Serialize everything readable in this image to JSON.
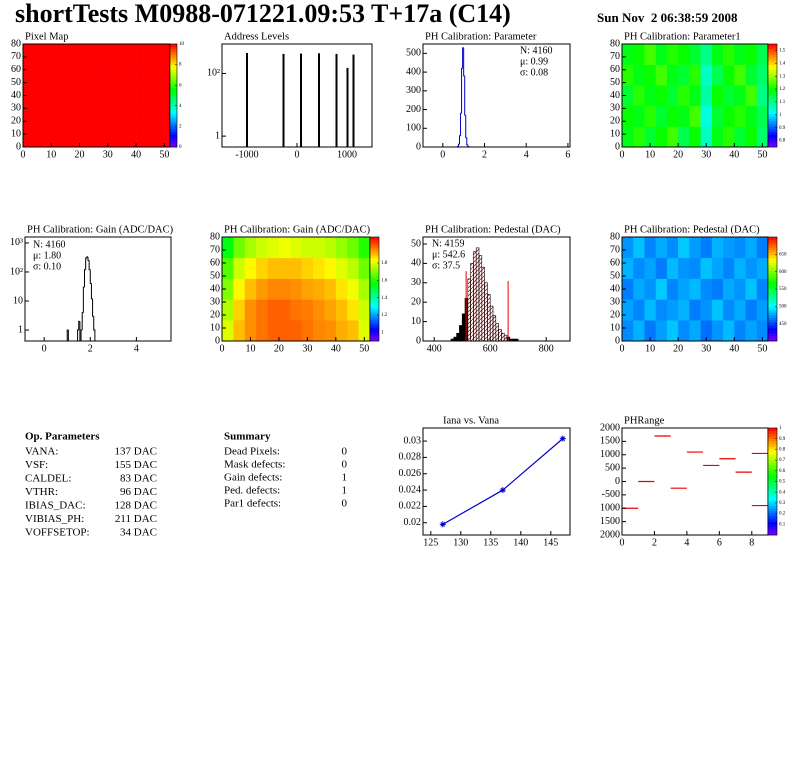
{
  "header": {
    "title": "shortTests M0988-071221.09:53 T+17a (C14)",
    "date": "Sun Nov  2 06:38:59 2008"
  },
  "chart_data": [
    {
      "type": "heatmap",
      "title": "Pixel Map",
      "xlim": [
        0,
        52
      ],
      "ylim": [
        0,
        80
      ],
      "xticks": [
        0,
        10,
        20,
        30,
        40,
        50
      ],
      "yticks": [
        0,
        10,
        20,
        30,
        40,
        50,
        60,
        70,
        80
      ],
      "zlim": [
        0,
        10
      ],
      "zticks": [
        0,
        2,
        4,
        6,
        8,
        10
      ],
      "z": [
        [
          10,
          10,
          10,
          10,
          10,
          10,
          10,
          10,
          10,
          10,
          10,
          10,
          10
        ],
        [
          10,
          10,
          10,
          10,
          10,
          10,
          10,
          10,
          10,
          10,
          10,
          10,
          10
        ],
        [
          10,
          10,
          10,
          10,
          10,
          10,
          10,
          10,
          10,
          10,
          10,
          10,
          10
        ],
        [
          10,
          10,
          10,
          10,
          10,
          10,
          10,
          10,
          10,
          10,
          10,
          10,
          10
        ],
        [
          10,
          10,
          10,
          10,
          10,
          10,
          10,
          10,
          10,
          10,
          10,
          10,
          10
        ]
      ]
    },
    {
      "type": "spikes",
      "title": "Address Levels",
      "x": [
        -1000,
        -270,
        80,
        440,
        790,
        1010,
        1130
      ],
      "values": [
        450,
        420,
        430,
        440,
        420,
        150,
        400
      ],
      "color": "#000000",
      "log_y": true,
      "xlim": [
        -1500,
        1500
      ],
      "xticks": [
        -1000,
        0,
        1000
      ],
      "ylim": [
        0.45,
        870
      ],
      "yticks": [
        1,
        {
          "value": 100,
          "label": "10²"
        }
      ]
    },
    {
      "type": "histogram",
      "title": "PH Calibration: Parameter",
      "bins": [
        0.7,
        0.75,
        0.8,
        0.85,
        0.9,
        0.95,
        1.0,
        1.05,
        1.1,
        1.15,
        1.2,
        1.25,
        1.3
      ],
      "values": [
        3,
        15,
        60,
        180,
        420,
        530,
        380,
        170,
        50,
        12,
        3,
        1
      ],
      "color": "#0000cc",
      "xlim": [
        -0.95,
        6.1
      ],
      "xticks": [
        0,
        2,
        4,
        6
      ],
      "ylim": [
        0,
        550
      ],
      "yticks": [
        0,
        100,
        200,
        300,
        400,
        500
      ],
      "stats": [
        "N: 4160",
        "μ: 0.99",
        "σ: 0.08"
      ],
      "stats_colors": [
        "#0000cc",
        "#0000cc",
        "#0000cc"
      ]
    },
    {
      "type": "heatmap",
      "title": "PH Calibration: Parameter1",
      "xlim": [
        0,
        52
      ],
      "ylim": [
        0,
        80
      ],
      "xticks": [
        0,
        10,
        20,
        30,
        40,
        50
      ],
      "yticks": [
        0,
        10,
        20,
        30,
        40,
        50,
        60,
        70,
        80
      ],
      "zlim": [
        0.75,
        1.55
      ],
      "zticks": [
        0.8,
        0.9,
        1,
        1.1,
        1.2,
        1.3,
        1.4,
        1.5
      ],
      "z": [
        [
          1.18,
          1.22,
          1.16,
          1.2,
          1.24,
          1.14,
          1.2,
          1.06,
          1.18,
          1.22,
          1.16,
          1.2,
          1.12
        ],
        [
          1.2,
          1.18,
          1.22,
          1.16,
          1.2,
          1.18,
          1.24,
          1.04,
          1.16,
          1.2,
          1.22,
          1.18,
          1.14
        ],
        [
          1.16,
          1.22,
          1.18,
          1.2,
          1.16,
          1.22,
          1.18,
          1.08,
          1.2,
          1.16,
          1.18,
          1.24,
          1.1
        ],
        [
          1.22,
          1.18,
          1.2,
          1.24,
          1.18,
          1.16,
          1.22,
          1.06,
          1.14,
          1.2,
          1.24,
          1.16,
          1.12
        ],
        [
          1.18,
          1.2,
          1.24,
          1.18,
          1.22,
          1.2,
          1.16,
          1.1,
          1.18,
          1.22,
          1.18,
          1.2,
          1.14
        ]
      ]
    },
    {
      "type": "histogram",
      "title": "PH Calibration: Gain (ADC/DAC)",
      "bins": [
        1.0,
        1.05,
        1.1,
        1.15,
        1.2,
        1.25,
        1.3,
        1.35,
        1.4,
        1.45,
        1.5,
        1.55,
        1.6,
        1.65,
        1.7,
        1.75,
        1.8,
        1.85,
        1.9,
        1.95,
        2.0,
        2.05,
        2.1,
        2.15,
        2.2
      ],
      "values": [
        1,
        0,
        0,
        0,
        0,
        0,
        0,
        0,
        0,
        1,
        2,
        0,
        1,
        4,
        30,
        120,
        300,
        330,
        250,
        120,
        40,
        12,
        3,
        1
      ],
      "color": "#000000",
      "log_y": true,
      "xlim": [
        -0.83,
        5.5
      ],
      "xticks": [
        0,
        2,
        4
      ],
      "ylim": [
        0.42,
        1600
      ],
      "yticks": [
        1,
        10,
        {
          "value": 100,
          "label": "10²"
        },
        {
          "value": 1000,
          "label": "10³"
        }
      ],
      "stats": [
        "N: 4160",
        "μ: 1.80",
        "σ: 0.10"
      ],
      "stats_colors": [
        "#000000",
        "#000000",
        "#000000"
      ]
    },
    {
      "type": "heatmap",
      "title": "PH Calibration: Gain (ADC/DAC)",
      "xlim": [
        0,
        52
      ],
      "ylim": [
        0,
        80
      ],
      "xticks": [
        0,
        10,
        20,
        30,
        40,
        50
      ],
      "yticks": [
        0,
        10,
        20,
        30,
        40,
        50,
        60,
        70,
        80
      ],
      "zlim": [
        0.9,
        2.1
      ],
      "zticks": [
        1,
        1.2,
        1.4,
        1.6,
        1.8
      ],
      "z": [
        [
          1.8,
          1.9,
          1.95,
          1.98,
          2.0,
          2.0,
          2.0,
          1.98,
          1.96,
          1.95,
          1.92,
          1.9,
          1.8
        ],
        [
          1.75,
          1.88,
          1.95,
          1.98,
          2.0,
          2.0,
          1.98,
          1.97,
          1.95,
          1.93,
          1.9,
          1.86,
          1.78
        ],
        [
          1.7,
          1.84,
          1.9,
          1.94,
          1.96,
          1.96,
          1.95,
          1.93,
          1.92,
          1.9,
          1.86,
          1.82,
          1.74
        ],
        [
          1.65,
          1.78,
          1.84,
          1.88,
          1.9,
          1.9,
          1.9,
          1.88,
          1.86,
          1.84,
          1.8,
          1.76,
          1.68
        ],
        [
          1.55,
          1.68,
          1.74,
          1.78,
          1.8,
          1.82,
          1.8,
          1.78,
          1.78,
          1.76,
          1.72,
          1.68,
          1.6
        ]
      ]
    },
    {
      "type": "histogram",
      "title": "PH Calibration: Pedestal (DAC)",
      "bins": [
        460,
        470,
        480,
        490,
        500,
        510,
        520,
        530,
        540,
        550,
        560,
        570,
        580,
        590,
        600,
        610,
        620,
        630,
        640,
        650,
        660,
        670,
        680,
        690,
        700,
        710
      ],
      "values": [
        1,
        2,
        4,
        8,
        14,
        22,
        32,
        40,
        46,
        48,
        44,
        38,
        30,
        24,
        18,
        13,
        9,
        6,
        4,
        3,
        2,
        1,
        1,
        1,
        0
      ],
      "color": "#000000",
      "fill": "#000000",
      "hatch_color": "#ee0000",
      "cut_lines": {
        "x": [
          514,
          664
        ],
        "values": [
          36,
          31
        ]
      },
      "xlim": [
        360,
        885
      ],
      "xticks": [
        400,
        600,
        800
      ],
      "ylim": [
        0,
        53.6
      ],
      "yticks": [
        0,
        10,
        20,
        30,
        40,
        50
      ],
      "stats": [
        "N: 4159",
        "μ: 542.6",
        "σ: 37.5"
      ],
      "stats_colors": [
        "#000000",
        "#ee0000",
        "#ee0000"
      ]
    },
    {
      "type": "heatmap",
      "title": "PH Calibration: Pedestal (DAC)",
      "xlim": [
        0,
        52
      ],
      "ylim": [
        0,
        80
      ],
      "xticks": [
        0,
        10,
        20,
        30,
        40,
        50
      ],
      "yticks": [
        0,
        10,
        20,
        30,
        40,
        50,
        60,
        70,
        80
      ],
      "zlim": [
        400,
        700
      ],
      "zticks": [
        450,
        500,
        550,
        600,
        650
      ],
      "z": [
        [
          470,
          480,
          465,
          475,
          485,
          470,
          478,
          462,
          472,
          482,
          468,
          476,
          470
        ],
        [
          476,
          468,
          482,
          470,
          474,
          480,
          466,
          472,
          484,
          470,
          478,
          466,
          474
        ],
        [
          466,
          478,
          472,
          486,
          468,
          476,
          482,
          470,
          466,
          478,
          472,
          484,
          468
        ],
        [
          480,
          470,
          476,
          466,
          482,
          472,
          470,
          484,
          476,
          468,
          480,
          472,
          478
        ],
        [
          472,
          484,
          468,
          478,
          470,
          486,
          474,
          466,
          480,
          474,
          470,
          478,
          466
        ]
      ]
    },
    {
      "type": "line",
      "title": "Iana vs. Vana",
      "x": [
        127,
        137,
        147
      ],
      "values": [
        0.0198,
        0.024,
        0.0303
      ],
      "color": "#0000cc",
      "xlim": [
        123.7,
        148.2
      ],
      "xticks": [
        125,
        130,
        135,
        140,
        145
      ],
      "ylim": [
        0.0185,
        0.0316
      ],
      "yticks": [
        0.02,
        0.022,
        0.024,
        0.026,
        0.028,
        0.03
      ]
    },
    {
      "type": "segments",
      "title": "PHRange",
      "x": [
        0,
        1,
        2,
        3,
        4,
        5,
        6,
        7,
        8,
        8
      ],
      "values": [
        -1000,
        0,
        1700,
        -250,
        1100,
        600,
        850,
        350,
        1050,
        -900
      ],
      "color": "#ee0000",
      "xlim": [
        0,
        9
      ],
      "xticks": [
        0,
        2,
        4,
        6,
        8
      ],
      "ylim": [
        -2000,
        2000
      ],
      "yticks": [
        2000,
        1500,
        1000,
        500,
        0,
        -500,
        {
          "value": -1000,
          "label": "1000"
        },
        {
          "value": -1500,
          "label": "1500"
        },
        {
          "value": -2000,
          "label": "2000"
        }
      ],
      "zlim": [
        0,
        1
      ],
      "zticks": [
        0.1,
        0.2,
        0.3,
        0.4,
        0.5,
        0.6,
        0.7,
        0.8,
        0.9,
        1
      ]
    }
  ],
  "op_parameters": {
    "title": "Op. Parameters",
    "rows": [
      [
        "VANA:",
        "137 DAC"
      ],
      [
        "VSF:",
        "155 DAC"
      ],
      [
        "CALDEL:",
        "83 DAC"
      ],
      [
        "VTHR:",
        "96 DAC"
      ],
      [
        "IBIAS_DAC:",
        "128 DAC"
      ],
      [
        "VIBIAS_PH:",
        "211 DAC"
      ],
      [
        "VOFFSETOP:",
        "34 DAC"
      ]
    ]
  },
  "summary": {
    "title": "Summary",
    "rows": [
      [
        "Dead Pixels:",
        0
      ],
      [
        "Mask defects:",
        0
      ],
      [
        "Gain defects:",
        1
      ],
      [
        "Ped. defects:",
        1
      ],
      [
        "Par1 defects:",
        0
      ]
    ],
    "row_colors": [
      "#000000",
      "#000000",
      "#000000",
      "#ee0000",
      "#0000cc"
    ]
  }
}
